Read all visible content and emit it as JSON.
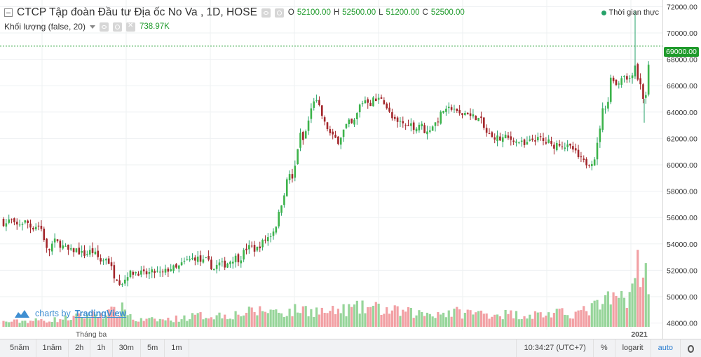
{
  "header": {
    "symbol_title": "CTCP Tập đoàn Đầu tư Địa ốc No Va , 1D, HOSE",
    "ohlc": [
      {
        "label": "O",
        "value": "52100.00"
      },
      {
        "label": "H",
        "value": "52500.00"
      },
      {
        "label": "L",
        "value": "51200.00"
      },
      {
        "label": "C",
        "value": "52500.00"
      }
    ],
    "volume_title": "Khối lượng (false, 20)",
    "volume_value": "738.97K",
    "realtime_label": "Thời gian thực"
  },
  "watermark": {
    "prefix": "charts by",
    "brand": "TradingView"
  },
  "colors": {
    "up": "#26a269",
    "up_body": "#3cb34a",
    "down": "#a3262b",
    "vol_up": "#97d59a",
    "vol_down": "#f2a0a4",
    "last_price_line": "#1f9a2b",
    "grid": "#eef0f2"
  },
  "toolbar": {
    "timeframes": [
      "5năm",
      "1năm",
      "2h",
      "1h",
      "30m",
      "5m",
      "1m"
    ],
    "clock": "10:34:27",
    "timezone": "(UTC+7)",
    "percent_label": "%",
    "log_label": "logarit",
    "auto_label": "auto",
    "settings_icon": "gear-icon"
  },
  "chart_data": {
    "type": "candlestick",
    "title": "CTCP Tập đoàn Đầu tư Địa ốc No Va , 1D, HOSE",
    "y_axis": {
      "min": 47500,
      "max": 72500,
      "ticks": [
        48000,
        50000,
        52000,
        54000,
        56000,
        58000,
        60000,
        62000,
        64000,
        66000,
        68000,
        70000,
        72000
      ],
      "tick_format": "00"
    },
    "last_price": "69000.00",
    "x_axis": {
      "labels": [
        "Tháng ba",
        "2021"
      ]
    },
    "volume_max": 1000,
    "price_path": [
      [
        0,
        55800
      ],
      [
        8,
        55500
      ],
      [
        15,
        55900
      ],
      [
        22,
        55300
      ],
      [
        30,
        55600
      ],
      [
        38,
        55700
      ],
      [
        45,
        55200
      ],
      [
        52,
        55400
      ],
      [
        58,
        55300
      ],
      [
        64,
        54200
      ],
      [
        68,
        53200
      ],
      [
        72,
        53800
      ],
      [
        78,
        54200
      ],
      [
        85,
        54000
      ],
      [
        92,
        53700
      ],
      [
        100,
        53400
      ],
      [
        108,
        53600
      ],
      [
        115,
        53300
      ],
      [
        122,
        53200
      ],
      [
        130,
        53500
      ],
      [
        138,
        53100
      ],
      [
        145,
        52600
      ],
      [
        152,
        53000
      ],
      [
        158,
        52300
      ],
      [
        163,
        51600
      ],
      [
        168,
        51400
      ],
      [
        172,
        51000
      ],
      [
        177,
        51200
      ],
      [
        182,
        51700
      ],
      [
        188,
        51800
      ],
      [
        195,
        51900
      ],
      [
        205,
        51700
      ],
      [
        215,
        51800
      ],
      [
        222,
        51900
      ],
      [
        230,
        51700
      ],
      [
        238,
        52000
      ],
      [
        245,
        52200
      ],
      [
        252,
        52100
      ],
      [
        258,
        52400
      ],
      [
        265,
        52700
      ],
      [
        272,
        52800
      ],
      [
        280,
        53000
      ],
      [
        288,
        52600
      ],
      [
        295,
        52800
      ],
      [
        300,
        52400
      ],
      [
        305,
        52100
      ],
      [
        312,
        52500
      ],
      [
        320,
        52400
      ],
      [
        328,
        52700
      ],
      [
        335,
        53000
      ],
      [
        342,
        52800
      ],
      [
        350,
        53600
      ],
      [
        358,
        53800
      ],
      [
        365,
        53500
      ],
      [
        372,
        54000
      ],
      [
        380,
        54400
      ],
      [
        388,
        54800
      ],
      [
        395,
        55600
      ],
      [
        400,
        56800
      ],
      [
        405,
        57800
      ],
      [
        410,
        58900
      ],
      [
        415,
        59600
      ],
      [
        418,
        58400
      ],
      [
        422,
        60500
      ],
      [
        428,
        62300
      ],
      [
        433,
        61800
      ],
      [
        438,
        62900
      ],
      [
        443,
        64000
      ],
      [
        448,
        65000
      ],
      [
        453,
        64600
      ],
      [
        458,
        64000
      ],
      [
        462,
        63200
      ],
      [
        467,
        62800
      ],
      [
        472,
        62200
      ],
      [
        478,
        62000
      ],
      [
        483,
        61800
      ],
      [
        488,
        62400
      ],
      [
        493,
        62900
      ],
      [
        498,
        63200
      ],
      [
        503,
        63000
      ],
      [
        508,
        63600
      ],
      [
        513,
        64500
      ],
      [
        518,
        64800
      ],
      [
        523,
        65000
      ],
      [
        528,
        64600
      ],
      [
        533,
        65000
      ],
      [
        538,
        64800
      ],
      [
        543,
        65200
      ],
      [
        548,
        64800
      ],
      [
        553,
        64200
      ],
      [
        558,
        63600
      ],
      [
        563,
        63300
      ],
      [
        568,
        63100
      ],
      [
        573,
        63300
      ],
      [
        578,
        62900
      ],
      [
        583,
        63200
      ],
      [
        588,
        63000
      ],
      [
        593,
        62700
      ],
      [
        598,
        63100
      ],
      [
        603,
        62900
      ],
      [
        608,
        62300
      ],
      [
        612,
        62700
      ],
      [
        617,
        63000
      ],
      [
        622,
        63200
      ],
      [
        627,
        63600
      ],
      [
        632,
        64200
      ],
      [
        637,
        64000
      ],
      [
        642,
        64300
      ],
      [
        647,
        64400
      ],
      [
        652,
        63900
      ],
      [
        657,
        63800
      ],
      [
        662,
        63900
      ],
      [
        667,
        64000
      ],
      [
        672,
        63600
      ],
      [
        677,
        63700
      ],
      [
        682,
        63500
      ],
      [
        687,
        63300
      ],
      [
        692,
        62500
      ],
      [
        697,
        62300
      ],
      [
        702,
        62000
      ],
      [
        707,
        62200
      ],
      [
        712,
        61900
      ],
      [
        717,
        62000
      ],
      [
        722,
        62100
      ],
      [
        727,
        61900
      ],
      [
        732,
        62000
      ],
      [
        737,
        61700
      ],
      [
        742,
        61800
      ],
      [
        747,
        61400
      ],
      [
        752,
        61600
      ],
      [
        757,
        61800
      ],
      [
        762,
        62000
      ],
      [
        767,
        61900
      ],
      [
        772,
        62000
      ],
      [
        777,
        61600
      ],
      [
        782,
        61800
      ],
      [
        787,
        61400
      ],
      [
        792,
        61500
      ],
      [
        797,
        61700
      ],
      [
        802,
        61500
      ],
      [
        807,
        61400
      ],
      [
        812,
        61300
      ],
      [
        817,
        61200
      ],
      [
        822,
        60800
      ],
      [
        826,
        60500
      ],
      [
        830,
        60300
      ],
      [
        835,
        60100
      ],
      [
        840,
        60200
      ],
      [
        845,
        60300
      ],
      [
        850,
        60700
      ],
      [
        854,
        62300
      ],
      [
        858,
        63600
      ],
      [
        862,
        64800
      ],
      [
        866,
        64000
      ],
      [
        870,
        66400
      ],
      [
        874,
        66800
      ],
      [
        878,
        66000
      ],
      [
        882,
        66200
      ],
      [
        886,
        66600
      ],
      [
        890,
        67000
      ],
      [
        894,
        66400
      ],
      [
        898,
        66600
      ],
      [
        902,
        67000
      ],
      [
        906,
        67600
      ],
      [
        910,
        66500
      ],
      [
        914,
        66000
      ],
      [
        917,
        65200
      ],
      [
        920,
        64700
      ],
      [
        923,
        66200
      ],
      [
        926,
        67900
      ],
      [
        928,
        69000
      ]
    ],
    "volume_path": [
      [
        0,
        40
      ],
      [
        40,
        50
      ],
      [
        80,
        60
      ],
      [
        120,
        90
      ],
      [
        170,
        130
      ],
      [
        180,
        160
      ],
      [
        190,
        55
      ],
      [
        240,
        60
      ],
      [
        280,
        90
      ],
      [
        330,
        100
      ],
      [
        380,
        140
      ],
      [
        410,
        120
      ],
      [
        430,
        150
      ],
      [
        470,
        120
      ],
      [
        500,
        150
      ],
      [
        530,
        160
      ],
      [
        560,
        130
      ],
      [
        600,
        110
      ],
      [
        650,
        120
      ],
      [
        700,
        110
      ],
      [
        750,
        100
      ],
      [
        800,
        110
      ],
      [
        830,
        120
      ],
      [
        855,
        180
      ],
      [
        875,
        230
      ],
      [
        890,
        250
      ],
      [
        900,
        300
      ],
      [
        903,
        420
      ],
      [
        908,
        270
      ],
      [
        912,
        340
      ],
      [
        916,
        380
      ],
      [
        920,
        330
      ],
      [
        924,
        300
      ],
      [
        928,
        270
      ]
    ],
    "volume_spikes": [
      [
        903,
        610
      ],
      [
        917,
        505
      ],
      [
        914,
        390
      ],
      [
        875,
        245
      ],
      [
        885,
        230
      ]
    ]
  }
}
